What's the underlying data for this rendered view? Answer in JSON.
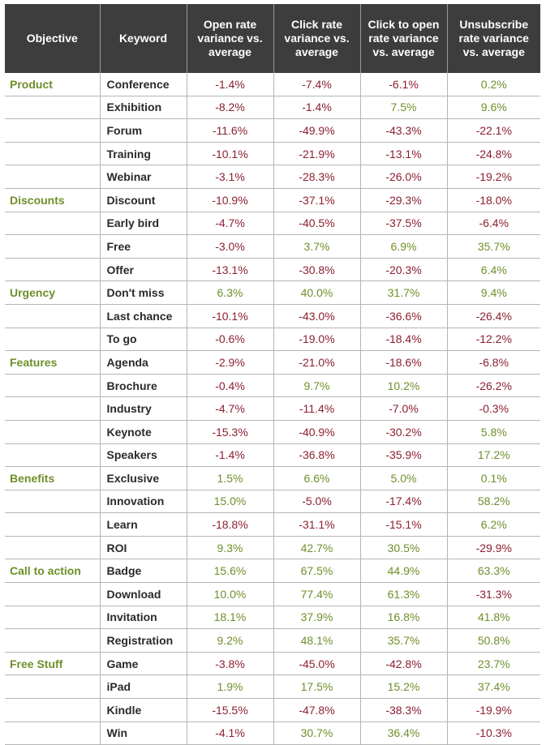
{
  "colors": {
    "negative": "#8b2030",
    "positive": "#6f8f2a",
    "objective": "#6f8f2a",
    "header_bg": "#3d3d3d"
  },
  "headers": {
    "objective": "Objective",
    "keyword": "Keyword",
    "open_rate": "Open rate variance vs. average",
    "click_rate": "Click rate variance vs. average",
    "cto_rate": "Click to open rate variance vs. average",
    "unsub_rate": "Unsubscribe rate variance vs. average"
  },
  "rows": [
    {
      "objective": "Product",
      "keyword": "Conference",
      "values": [
        "-1.4%",
        "-7.4%",
        "-6.1%",
        "0.2%"
      ]
    },
    {
      "objective": "",
      "keyword": "Exhibition",
      "values": [
        "-8.2%",
        "-1.4%",
        "7.5%",
        "9.6%"
      ]
    },
    {
      "objective": "",
      "keyword": "Forum",
      "values": [
        "-11.6%",
        "-49.9%",
        "-43.3%",
        "-22.1%"
      ]
    },
    {
      "objective": "",
      "keyword": "Training",
      "values": [
        "-10.1%",
        "-21.9%",
        "-13.1%",
        "-24.8%"
      ]
    },
    {
      "objective": "",
      "keyword": "Webinar",
      "values": [
        "-3.1%",
        "-28.3%",
        "-26.0%",
        "-19.2%"
      ]
    },
    {
      "objective": "Discounts",
      "keyword": "Discount",
      "values": [
        "-10.9%",
        "-37.1%",
        "-29.3%",
        "-18.0%"
      ]
    },
    {
      "objective": "",
      "keyword": "Early bird",
      "values": [
        "-4.7%",
        "-40.5%",
        "-37.5%",
        "-6.4%"
      ]
    },
    {
      "objective": "",
      "keyword": "Free",
      "values": [
        "-3.0%",
        "3.7%",
        "6.9%",
        "35.7%"
      ]
    },
    {
      "objective": "",
      "keyword": "Offer",
      "values": [
        "-13.1%",
        "-30.8%",
        "-20.3%",
        "6.4%"
      ]
    },
    {
      "objective": "Urgency",
      "keyword": "Don't miss",
      "values": [
        "6.3%",
        "40.0%",
        "31.7%",
        "9.4%"
      ]
    },
    {
      "objective": "",
      "keyword": "Last chance",
      "values": [
        "-10.1%",
        "-43.0%",
        "-36.6%",
        "-26.4%"
      ]
    },
    {
      "objective": "",
      "keyword": "To go",
      "values": [
        "-0.6%",
        "-19.0%",
        "-18.4%",
        "-12.2%"
      ]
    },
    {
      "objective": "Features",
      "keyword": "Agenda",
      "values": [
        "-2.9%",
        "-21.0%",
        "-18.6%",
        "-6.8%"
      ]
    },
    {
      "objective": "",
      "keyword": "Brochure",
      "values": [
        "-0.4%",
        "9.7%",
        "10.2%",
        "-26.2%"
      ]
    },
    {
      "objective": "",
      "keyword": "Industry",
      "values": [
        "-4.7%",
        "-11.4%",
        "-7.0%",
        "-0.3%"
      ]
    },
    {
      "objective": "",
      "keyword": "Keynote",
      "values": [
        "-15.3%",
        "-40.9%",
        "-30.2%",
        "5.8%"
      ]
    },
    {
      "objective": "",
      "keyword": "Speakers",
      "values": [
        "-1.4%",
        "-36.8%",
        "-35.9%",
        "17.2%"
      ]
    },
    {
      "objective": "Benefits",
      "keyword": "Exclusive",
      "values": [
        "1.5%",
        "6.6%",
        "5.0%",
        "0.1%"
      ]
    },
    {
      "objective": "",
      "keyword": "Innovation",
      "values": [
        "15.0%",
        "-5.0%",
        "-17.4%",
        "58.2%"
      ]
    },
    {
      "objective": "",
      "keyword": "Learn",
      "values": [
        "-18.8%",
        "-31.1%",
        "-15.1%",
        "6.2%"
      ]
    },
    {
      "objective": "",
      "keyword": "ROI",
      "values": [
        "9.3%",
        "42.7%",
        "30.5%",
        "-29.9%"
      ]
    },
    {
      "objective": "Call to action",
      "keyword": "Badge",
      "values": [
        "15.6%",
        "67.5%",
        "44.9%",
        "63.3%"
      ]
    },
    {
      "objective": "",
      "keyword": "Download",
      "values": [
        "10.0%",
        "77.4%",
        "61.3%",
        "-31.3%"
      ]
    },
    {
      "objective": "",
      "keyword": "Invitation",
      "values": [
        "18.1%",
        "37.9%",
        "16.8%",
        "41.8%"
      ]
    },
    {
      "objective": "",
      "keyword": "Registration",
      "values": [
        "9.2%",
        "48.1%",
        "35.7%",
        "50.8%"
      ]
    },
    {
      "objective": "Free Stuff",
      "keyword": "Game",
      "values": [
        "-3.8%",
        "-45.0%",
        "-42.8%",
        "23.7%"
      ]
    },
    {
      "objective": "",
      "keyword": "iPad",
      "values": [
        "1.9%",
        "17.5%",
        "15.2%",
        "37.4%"
      ]
    },
    {
      "objective": "",
      "keyword": "Kindle",
      "values": [
        "-15.5%",
        "-47.8%",
        "-38.3%",
        "-19.9%"
      ]
    },
    {
      "objective": "",
      "keyword": "Win",
      "values": [
        "-4.1%",
        "30.7%",
        "36.4%",
        "-10.3%"
      ]
    }
  ]
}
